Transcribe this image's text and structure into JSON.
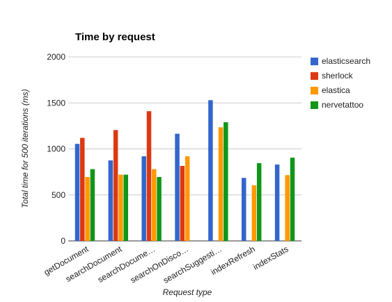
{
  "chart_data": {
    "type": "bar",
    "title": "Time by request",
    "xlabel": "Request type",
    "ylabel": "Total time for 500 iterations (ms)",
    "ylim": [
      0,
      2000
    ],
    "yticks": [
      "0",
      "500",
      "1000",
      "1500",
      "2000"
    ],
    "grid": true,
    "legend_position": "right",
    "categories": [
      "getDocument",
      "searchDocument",
      "searchDocume…",
      "searchOnDisco…",
      "searchSuggesti…",
      "indexRefresh",
      "indexStats"
    ],
    "series": [
      {
        "name": "elasticsearch",
        "color": "#3366cc",
        "values": [
          1055,
          875,
          920,
          1165,
          1530,
          685,
          830
        ]
      },
      {
        "name": "sherlock",
        "color": "#dc3912",
        "values": [
          1120,
          1205,
          1410,
          815,
          null,
          null,
          null
        ]
      },
      {
        "name": "elastica",
        "color": "#ff9900",
        "values": [
          695,
          720,
          780,
          920,
          1235,
          605,
          715
        ]
      },
      {
        "name": "nervetattoo",
        "color": "#109618",
        "values": [
          780,
          720,
          695,
          null,
          1290,
          845,
          905
        ]
      }
    ]
  }
}
